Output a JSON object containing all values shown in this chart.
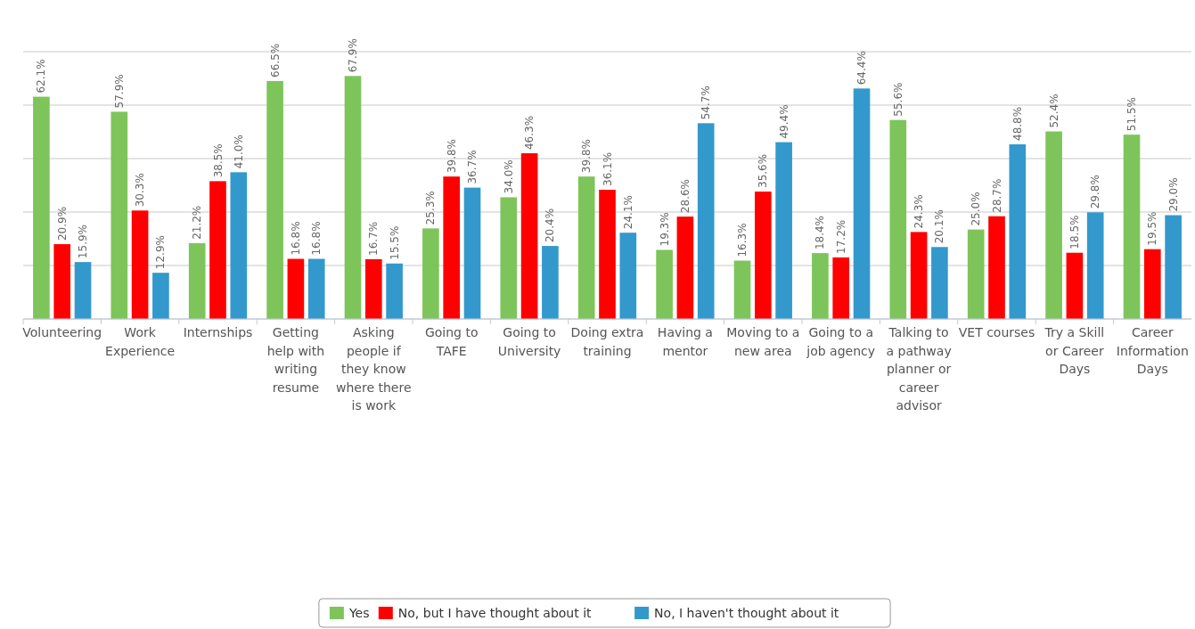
{
  "chart_data": {
    "type": "bar",
    "categories": [
      "Volunteering",
      "Work Experience",
      "Internships",
      "Getting help with writing resume",
      "Asking people if they know where there is work",
      "Going to TAFE",
      "Going to University",
      "Doing extra training",
      "Having a mentor",
      "Moving to a new area",
      "Going to a job agency",
      "Talking to a pathway planner or career advisor",
      "VET courses",
      "Try a Skill or Career Days",
      "Career Information Days"
    ],
    "series": [
      {
        "name": "Yes",
        "color": "#7dc55a",
        "values": [
          62.1,
          57.9,
          21.2,
          66.5,
          67.9,
          25.3,
          34.0,
          39.8,
          19.3,
          16.3,
          18.4,
          55.6,
          25.0,
          52.4,
          51.5
        ],
        "value_labels": [
          "62.1%",
          "57.9%",
          "21.2%",
          "66.5%",
          "67.9%",
          "25.3%",
          "34.0%",
          "39.8%",
          "19.3%",
          "16.3%",
          "18.4%",
          "55.6%",
          "25.0%",
          "52.4%",
          "51.5%"
        ]
      },
      {
        "name": "No, but I have thought about it",
        "color": "#ff0000",
        "values": [
          20.9,
          30.3,
          38.5,
          16.8,
          16.7,
          39.8,
          46.3,
          36.1,
          28.6,
          35.6,
          17.2,
          24.3,
          28.7,
          18.5,
          19.5
        ],
        "value_labels": [
          "20.9%",
          "30.3%",
          "38.5%",
          "16.8%",
          "16.7%",
          "39.8%",
          "46.3%",
          "36.1%",
          "28.6%",
          "35.6%",
          "17.2%",
          "24.3%",
          "28.7%",
          "18.5%",
          "19.5%"
        ]
      },
      {
        "name": "No, I haven't thought about it",
        "color": "#3399cc",
        "values": [
          15.9,
          12.9,
          41.0,
          16.8,
          15.5,
          36.7,
          20.4,
          24.1,
          54.7,
          49.4,
          64.4,
          20.1,
          48.8,
          29.8,
          29.0
        ],
        "value_labels": [
          "15.9%",
          "12.9%",
          "41.0%",
          "16.8%",
          "15.5%",
          "36.7%",
          "20.4%",
          "24.1%",
          "54.7%",
          "49.4%",
          "64.4%",
          "20.1%",
          "48.8%",
          "29.8%",
          "29.0%"
        ]
      }
    ],
    "tick_labels": "x",
    "grid": "y",
    "legend": "bottom"
  }
}
